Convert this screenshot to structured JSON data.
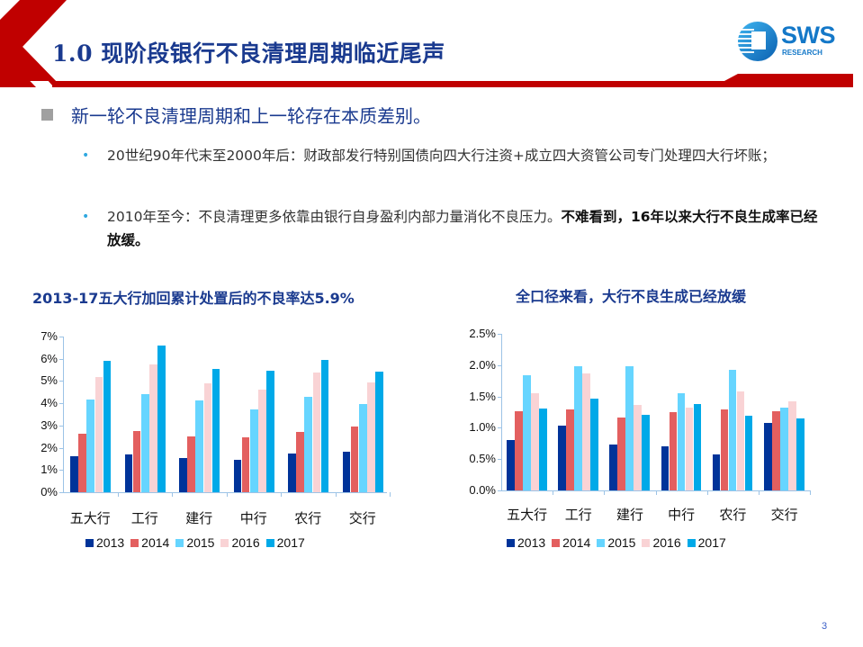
{
  "header": {
    "title": "1.0 现阶段银行不良清理周期临近尾声",
    "logo": {
      "name": "SWS",
      "sub": "RESEARCH"
    },
    "brand_color": "#c00000",
    "title_color": "#1a3a8f"
  },
  "content": {
    "main_bullet": "新一轮不良清理周期和上一轮存在本质差别。",
    "sub_bullets": [
      {
        "text": "20世纪90年代末至2000年后：财政部发行特别国债向四大行注资+成立四大资管公司专门处理四大行坏账；",
        "bold": ""
      },
      {
        "text": "2010年至今：不良清理更多依靠由银行自身盈利内部力量消化不良压力。",
        "bold": "不难看到，16年以来大行不良生成率已经放缓。"
      }
    ]
  },
  "chart_data": [
    {
      "type": "bar",
      "title": "2013-17五大行加回累计处置后的不良率达5.9%",
      "categories": [
        "五大行",
        "工行",
        "建行",
        "中行",
        "农行",
        "交行"
      ],
      "series": [
        {
          "name": "2013",
          "color": "#003399",
          "values": [
            1.63,
            1.7,
            1.55,
            1.47,
            1.73,
            1.83
          ]
        },
        {
          "name": "2014",
          "color": "#e35f5f",
          "values": [
            2.65,
            2.75,
            2.5,
            2.47,
            2.72,
            2.97
          ]
        },
        {
          "name": "2015",
          "color": "#66d5ff",
          "values": [
            4.15,
            4.42,
            4.12,
            3.72,
            4.3,
            3.98
          ]
        },
        {
          "name": "2016",
          "color": "#f9d3d5",
          "values": [
            5.17,
            5.76,
            4.9,
            4.62,
            5.38,
            4.93
          ]
        },
        {
          "name": "2017",
          "color": "#00a9e8",
          "values": [
            5.9,
            6.58,
            5.55,
            5.48,
            5.93,
            5.43
          ]
        }
      ],
      "yticks": [
        "0%",
        "1%",
        "2%",
        "3%",
        "4%",
        "5%",
        "6%",
        "7%"
      ],
      "ylim": [
        0,
        7
      ],
      "xlabel": "",
      "ylabel": "",
      "grid": false,
      "legend_position": "bottom"
    },
    {
      "type": "bar",
      "title": "全口径来看，大行不良生成已经放缓",
      "categories": [
        "五大行",
        "工行",
        "建行",
        "中行",
        "农行",
        "交行"
      ],
      "series": [
        {
          "name": "2013",
          "color": "#003399",
          "values": [
            0.81,
            1.03,
            0.73,
            0.7,
            0.58,
            1.08
          ]
        },
        {
          "name": "2014",
          "color": "#e35f5f",
          "values": [
            1.26,
            1.29,
            1.17,
            1.25,
            1.3,
            1.26
          ]
        },
        {
          "name": "2015",
          "color": "#66d5ff",
          "values": [
            1.84,
            1.98,
            1.99,
            1.55,
            1.93,
            1.32
          ]
        },
        {
          "name": "2016",
          "color": "#f9d3d5",
          "values": [
            1.55,
            1.87,
            1.36,
            1.32,
            1.58,
            1.42
          ]
        },
        {
          "name": "2017",
          "color": "#00a9e8",
          "values": [
            1.31,
            1.46,
            1.2,
            1.38,
            1.19,
            1.15
          ]
        }
      ],
      "yticks": [
        "0.0%",
        "0.5%",
        "1.0%",
        "1.5%",
        "2.0%",
        "2.5%"
      ],
      "ylim": [
        0,
        2.5
      ],
      "xlabel": "",
      "ylabel": "",
      "grid": false,
      "legend_position": "bottom"
    }
  ],
  "footer": {
    "page_number": "3"
  }
}
